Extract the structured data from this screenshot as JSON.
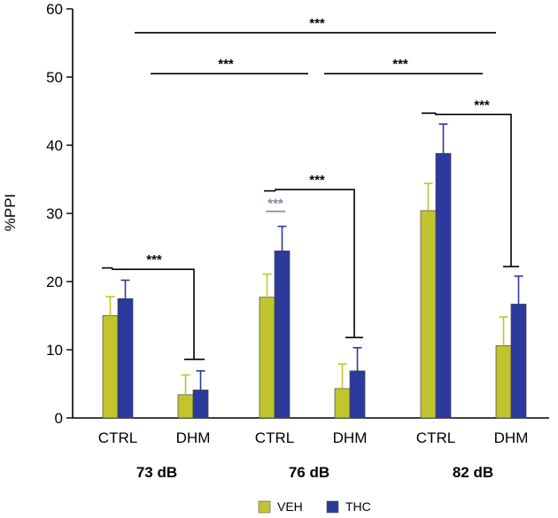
{
  "chart_data": {
    "type": "bar",
    "ylabel": "%PPI",
    "ylim": [
      0,
      60
    ],
    "yticks": [
      0,
      10,
      20,
      30,
      40,
      50,
      60
    ],
    "ytick_labels": [
      "0",
      "10",
      "20",
      "30",
      "40",
      "50",
      "60"
    ],
    "colors": {
      "VEH": "#c2c42d",
      "THC": "#2b3a9c",
      "sig_gray": "#7a8aa0",
      "axis": "#000000"
    },
    "groups": [
      {
        "label": "CTRL",
        "db": "73 dB"
      },
      {
        "label": "DHM",
        "db": "73 dB"
      },
      {
        "label": "CTRL",
        "db": "76 dB"
      },
      {
        "label": "DHM",
        "db": "76 dB"
      },
      {
        "label": "CTRL",
        "db": "82 dB"
      },
      {
        "label": "DHM",
        "db": "82 dB"
      }
    ],
    "db_labels": [
      "73 dB",
      "76 dB",
      "82 dB"
    ],
    "series": [
      {
        "name": "VEH",
        "values": [
          15.0,
          3.4,
          17.7,
          4.3,
          30.4,
          10.6
        ],
        "errors": [
          2.8,
          2.9,
          3.4,
          3.6,
          4.0,
          4.2
        ]
      },
      {
        "name": "THC",
        "values": [
          17.5,
          4.1,
          24.5,
          6.9,
          38.8,
          16.7
        ],
        "errors": [
          2.7,
          2.8,
          3.6,
          3.4,
          4.3,
          4.1
        ]
      }
    ],
    "legend": {
      "position": "bottom-center",
      "entries": [
        "VEH",
        "THC"
      ]
    },
    "significance": [
      {
        "label": "***",
        "y": 56.5
      },
      {
        "label": "***",
        "y": 50.5
      },
      {
        "label": "***",
        "y": 50.5
      },
      {
        "label": "***",
        "y": 44.5
      },
      {
        "label": "***",
        "y": 33.5
      },
      {
        "label": "***",
        "y": 29.5
      },
      {
        "label": "***",
        "y": 21.8
      }
    ]
  }
}
